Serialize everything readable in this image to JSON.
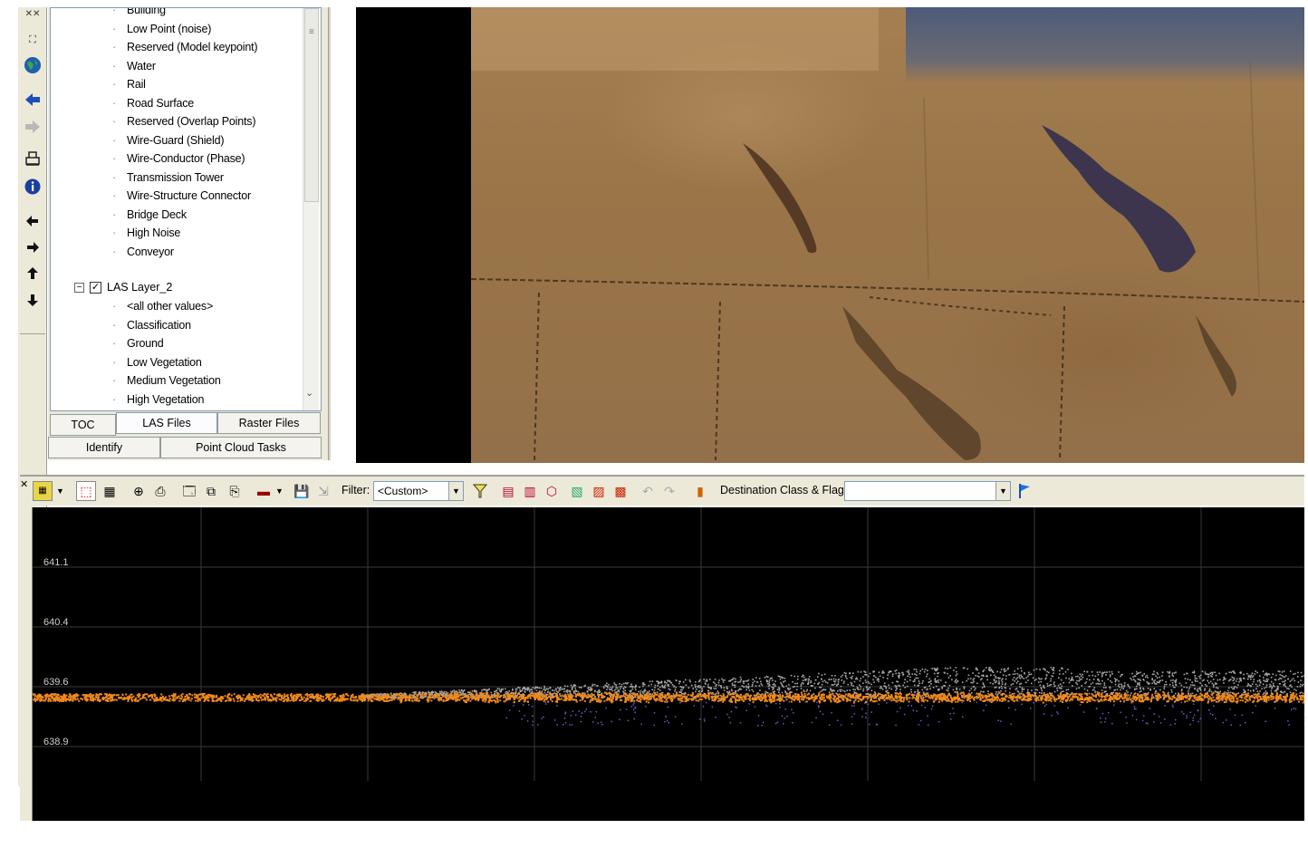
{
  "toc": {
    "items_upper": [
      "Building",
      "Low Point (noise)",
      "Reserved (Model keypoint)",
      "Water",
      "Rail",
      "Road Surface",
      "Reserved (Overlap Points)",
      "Wire-Guard (Shield)",
      "Wire-Conductor (Phase)",
      "Transmission Tower",
      "Wire-Structure Connector",
      "Bridge Deck",
      "High Noise",
      "Conveyor"
    ],
    "layer_name": "LAS Layer_2",
    "layer_checked": true,
    "items_lower": [
      "<all other values>",
      "Classification",
      "Ground",
      "Low Vegetation",
      "Medium Vegetation",
      "High Vegetation"
    ],
    "tabs_row1": [
      "TOC",
      "LAS Files",
      "Raster Files"
    ],
    "tabs_row2": [
      "Identify",
      "Point Cloud Tasks"
    ]
  },
  "toolbar": {
    "filter_label": "Filter:",
    "filter_value": "<Custom>",
    "destination_label": "Destination Class & Flags:",
    "destination_value": ""
  },
  "profile": {
    "y_ticks": [
      "641.1",
      "640.4",
      "639.6",
      "638.9"
    ],
    "colors": {
      "ground": "#f08a1c",
      "vegetation": "#a8a8a8",
      "low_points": "#6a5acd",
      "grid": "#3a3a3a",
      "background": "#000000"
    }
  },
  "icons": {
    "side_tools": [
      "full-extent-icon",
      "fixed-zoom-icon",
      "globe-icon",
      "back-arrow-icon",
      "forward-arrow-icon",
      "print-icon",
      "info-icon",
      "pan-left-icon",
      "pan-right-icon",
      "pan-up-icon",
      "pan-down-icon"
    ]
  }
}
